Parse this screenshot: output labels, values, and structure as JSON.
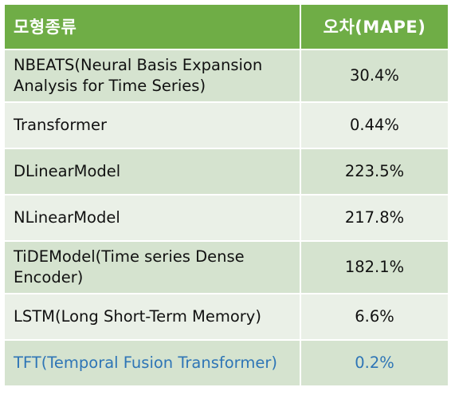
{
  "table": {
    "headers": {
      "model": "모형종류",
      "error": "오차(MAPE)"
    },
    "rows": [
      {
        "model_line1": "NBEATS(Neural Basis Expansion",
        "model_line2": "Analysis for Time Series)",
        "error": "30.4%"
      },
      {
        "model_line1": "Transformer",
        "model_line2": "",
        "error": "0.44%"
      },
      {
        "model_line1": "DLinearModel",
        "model_line2": "",
        "error": "223.5%"
      },
      {
        "model_line1": "NLinearModel",
        "model_line2": "",
        "error": "217.8%"
      },
      {
        "model_line1": "TiDEModel(Time series Dense",
        "model_line2": "Encoder)",
        "error": "182.1%"
      },
      {
        "model_line1": "LSTM(Long Short-Term Memory)",
        "model_line2": "",
        "error": "6.6%"
      },
      {
        "model_line1": "TFT(Temporal Fusion Transformer)",
        "model_line2": "",
        "error": "0.2%"
      }
    ],
    "colors": {
      "header_bg": "#6fad46",
      "row_alt_bg": "#d5e3cf",
      "row_plain_bg": "#eaf0e7",
      "highlight_text": "#2e75b6"
    }
  }
}
